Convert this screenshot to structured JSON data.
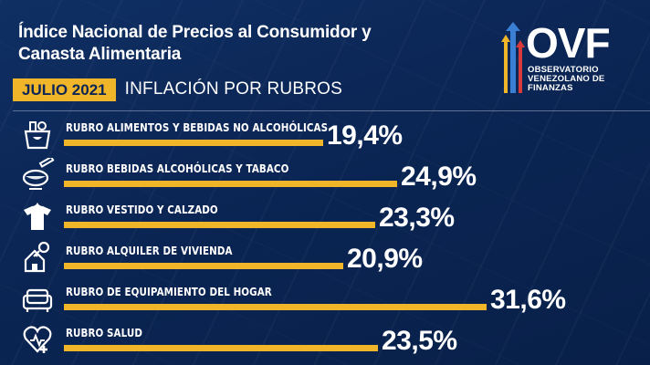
{
  "header": {
    "title_line1": "Índice Nacional de Precios al Consumidor y",
    "title_line2": "Canasta Alimentaria",
    "month": "JULIO 2021",
    "subtitle": "INFLACIÓN POR RUBROS"
  },
  "logo": {
    "acronym": "OVF",
    "line1": "OBSERVATORIO",
    "line2": "VENEZOLANO DE",
    "line3": "FINANZAS"
  },
  "colors": {
    "background": "#0b2554",
    "accent": "#f1b52a"
  },
  "chart_data": {
    "type": "bar",
    "orientation": "horizontal",
    "categories": [
      "RUBRO ALIMENTOS Y BEBIDAS NO ALCOHÓLICAS",
      "RUBRO BEBIDAS ALCOHÓLICAS Y TABACO",
      "RUBRO VESTIDO Y CALZADO",
      "RUBRO ALQUILER DE VIVIENDA",
      "RUBRO DE EQUIPAMIENTO DEL HOGAR",
      "RUBRO SALUD"
    ],
    "values": [
      19.4,
      24.9,
      23.3,
      20.9,
      31.6,
      23.5
    ],
    "value_labels": [
      "19,4%",
      "24,9%",
      "23,3%",
      "20,9%",
      "31,6%",
      "23,5%"
    ],
    "icons": [
      "grocery-basket-icon",
      "drink-cigarette-icon",
      "shirt-icon",
      "house-key-icon",
      "sofa-icon",
      "heart-health-icon"
    ],
    "unit": "%",
    "title": "INFLACIÓN POR RUBROS"
  }
}
